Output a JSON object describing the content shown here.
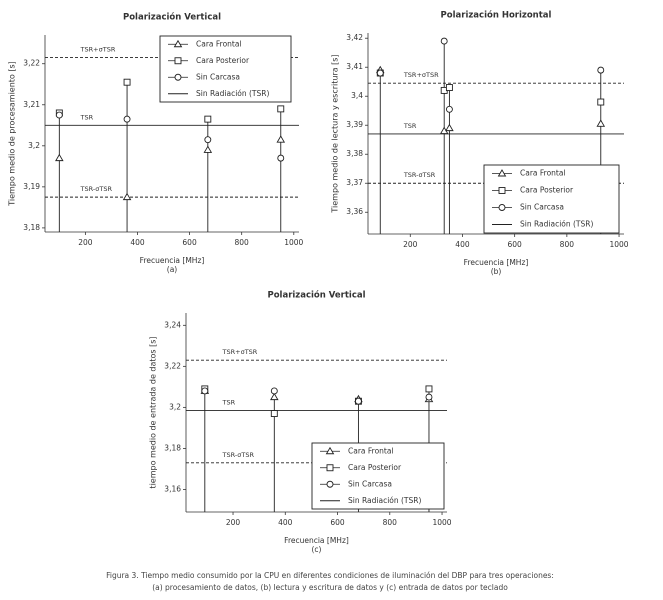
{
  "chart_data": [
    {
      "type": "stem",
      "title": "Polarización Vertical",
      "x_label": "Frecuencia [MHz]",
      "y_label": "Tiempo medio de procesamiento [s]",
      "caption": "(a)",
      "x": [
        100,
        360,
        670,
        950
      ],
      "series": [
        {
          "name": "Cara Frontal",
          "marker": "triangle",
          "color": "#222222",
          "values": [
            3.197,
            3.1875,
            3.199,
            3.2015
          ]
        },
        {
          "name": "Cara Posterior",
          "marker": "square",
          "color": "#222222",
          "values": [
            3.208,
            3.2155,
            3.2065,
            3.209
          ]
        },
        {
          "name": "Sin Carcasa",
          "marker": "circle",
          "color": "#222222",
          "values": [
            3.2075,
            3.2065,
            3.2015,
            3.197
          ]
        }
      ],
      "reference_lines": [
        {
          "label": "TSR+σTSR",
          "value": 3.2215,
          "style": "dashed"
        },
        {
          "label": "TSR",
          "value": 3.205,
          "style": "solid",
          "name": "Sin Radiación (TSR)"
        },
        {
          "label": "TSR-σTSR",
          "value": 3.1875,
          "style": "dashed"
        }
      ],
      "xlim": [
        45,
        1020
      ],
      "xticks": [
        200,
        400,
        600,
        800,
        1000
      ],
      "ylim": [
        3.179,
        3.227
      ],
      "yticks": [
        {
          "value": 3.18,
          "label": "3,18"
        },
        {
          "value": 3.19,
          "label": "3,19"
        },
        {
          "value": 3.2,
          "label": "3,2"
        },
        {
          "value": 3.21,
          "label": "3,21"
        },
        {
          "value": 3.22,
          "label": "3,22"
        }
      ],
      "legend": "upper right"
    },
    {
      "type": "stem",
      "title": "Polarización Horizontal",
      "x_label": "Frecuencia [MHz]",
      "y_label": "Tiempo medio de lectura y escritura [s]",
      "caption": "(b)",
      "x": [
        85,
        330,
        350,
        930
      ],
      "series": [
        {
          "name": "Cara Frontal",
          "marker": "triangle",
          "color": "#222222",
          "values": [
            3.409,
            3.388,
            3.389,
            3.3905
          ]
        },
        {
          "name": "Cara Posterior",
          "marker": "square",
          "color": "#222222",
          "values": [
            3.408,
            3.402,
            3.403,
            3.398
          ]
        },
        {
          "name": "Sin Carcasa",
          "marker": "circle",
          "color": "#222222",
          "values": [
            3.408,
            3.419,
            3.3955,
            3.409
          ]
        }
      ],
      "reference_lines": [
        {
          "label": "TSR+σTSR",
          "value": 3.4045,
          "style": "dashed"
        },
        {
          "label": "TSR",
          "value": 3.387,
          "style": "solid",
          "name": "Sin Radiación (TSR)"
        },
        {
          "label": "TSR-σTSR",
          "value": 3.37,
          "style": "dashed"
        }
      ],
      "xlim": [
        38,
        1019
      ],
      "xticks": [
        200,
        400,
        600,
        800,
        1000
      ],
      "ylim": [
        3.3525,
        3.4218
      ],
      "yticks": [
        {
          "value": 3.36,
          "label": "3,36"
        },
        {
          "value": 3.37,
          "label": "3,37"
        },
        {
          "value": 3.38,
          "label": "3,38"
        },
        {
          "value": 3.39,
          "label": "3,39"
        },
        {
          "value": 3.4,
          "label": "3,4"
        },
        {
          "value": 3.41,
          "label": "3,41"
        },
        {
          "value": 3.42,
          "label": "3,42"
        }
      ],
      "legend": "lower right"
    },
    {
      "type": "stem",
      "title": "Polarización Vertical",
      "x_label": "Frecuencia [MHz]",
      "y_label": "tiempo medio de entrada de datos [s]",
      "caption": "(c)",
      "x": [
        92,
        358,
        680,
        950
      ],
      "series": [
        {
          "name": "Cara Frontal",
          "marker": "triangle",
          "color": "#222222",
          "values": [
            3.208,
            3.205,
            3.204,
            3.204
          ]
        },
        {
          "name": "Cara Posterior",
          "marker": "square",
          "color": "#222222",
          "values": [
            3.209,
            3.197,
            3.203,
            3.209
          ]
        },
        {
          "name": "Sin Carcasa",
          "marker": "circle",
          "color": "#222222",
          "values": [
            3.208,
            3.208,
            3.203,
            3.205
          ]
        }
      ],
      "reference_lines": [
        {
          "label": "TSR+σTSR",
          "value": 3.223,
          "style": "dashed"
        },
        {
          "label": "TSR",
          "value": 3.1985,
          "style": "solid",
          "name": "Sin Radiación (TSR)"
        },
        {
          "label": "TSR-σTSR",
          "value": 3.173,
          "style": "dashed"
        }
      ],
      "xlim": [
        20,
        1019
      ],
      "xticks": [
        200,
        400,
        600,
        800,
        1000
      ],
      "ylim": [
        3.149,
        3.246
      ],
      "yticks": [
        {
          "value": 3.16,
          "label": "3,16"
        },
        {
          "value": 3.18,
          "label": "3,18"
        },
        {
          "value": 3.2,
          "label": "3,2"
        },
        {
          "value": 3.22,
          "label": "3,22"
        },
        {
          "value": 3.24,
          "label": "3,24"
        }
      ],
      "legend": "lower right"
    }
  ],
  "caption": "Figura 3. Tiempo medio consumido por la CPU en diferentes condiciones de iluminación del DBP para tres operaciones: (a) procesamiento de datos, (b) lectura y escritura de datos y (c) entrada de datos por teclado"
}
